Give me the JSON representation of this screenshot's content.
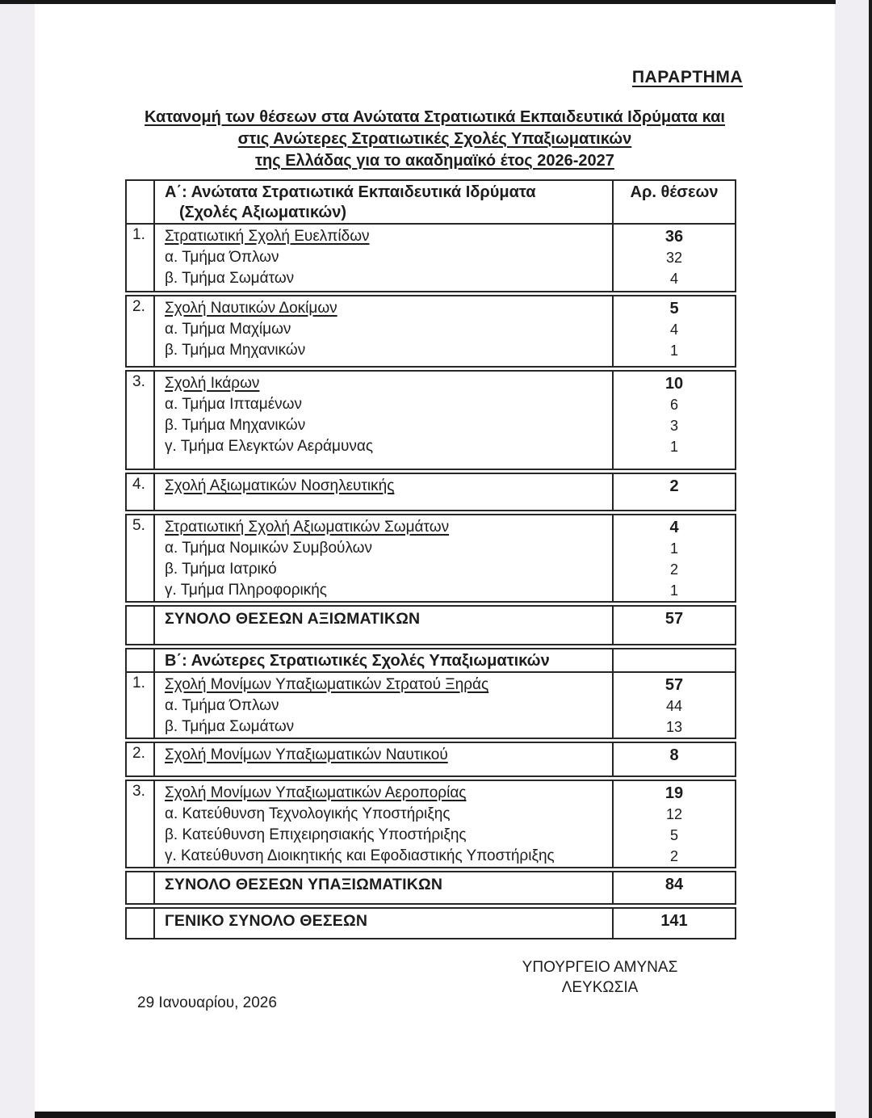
{
  "appendix_label": "ΠΑΡΑΡΤΗΜΑ",
  "title_lines": [
    "Κατανομή των θέσεων στα Ανώτατα Στρατιωτικά Εκπαιδευτικά Ιδρύματα και",
    "στις Ανώτερες Στρατιωτικές Σχολές Υπαξιωματικών",
    "της Ελλάδας για το ακαδημαϊκό έτος 2026-2027"
  ],
  "colors": {
    "page": "#ffffff",
    "margin_band": "#f1eef3",
    "border": "#262626",
    "ink": "#1c1c1c"
  },
  "table": {
    "section_a": {
      "header_line1": "Α΄: Ανώτατα Στρατιωτικά Εκπαιδευτικά Ιδρύματα",
      "header_line2": "(Σχολές Αξιωματικών)",
      "col_header": "Αρ. θέσεων",
      "rows": [
        {
          "num": "1.",
          "school": "Στρατιωτική Σχολή Ευελπίδων",
          "total": "36",
          "subs": [
            {
              "label": "α. Τμήμα Όπλων",
              "value": "32"
            },
            {
              "label": "β. Τμήμα Σωμάτων",
              "value": "4"
            }
          ]
        },
        {
          "num": "2.",
          "school": "Σχολή Ναυτικών Δοκίμων",
          "total": "5",
          "subs": [
            {
              "label": "α. Τμήμα Μαχίμων",
              "value": "4"
            },
            {
              "label": "β. Τμήμα Μηχανικών",
              "value": "1"
            }
          ]
        },
        {
          "num": "3.",
          "school": "Σχολή Ικάρων",
          "total": "10",
          "subs": [
            {
              "label": "α. Τμήμα Ιπταμένων",
              "value": "6"
            },
            {
              "label": "β. Τμήμα Μηχανικών",
              "value": "3"
            },
            {
              "label": "γ. Τμήμα Ελεγκτών Αεράμυνας",
              "value": "1"
            }
          ]
        },
        {
          "num": "4.",
          "school": "Σχολή Αξιωματικών Νοσηλευτικής",
          "total": "2",
          "subs": []
        },
        {
          "num": "5.",
          "school": "Στρατιωτική Σχολή Αξιωματικών Σωμάτων",
          "total": "4",
          "subs": [
            {
              "label": "α. Τμήμα Νομικών Συμβούλων",
              "value": "1"
            },
            {
              "label": "β. Τμήμα Ιατρικό",
              "value": "2"
            },
            {
              "label": "γ. Τμήμα Πληροφορικής",
              "value": "1"
            }
          ]
        }
      ],
      "total_label": "ΣΥΝΟΛΟ ΘΕΣΕΩΝ ΑΞΙΩΜΑΤΙΚΩΝ",
      "total_value": "57"
    },
    "section_b": {
      "header": "Β΄: Ανώτερες Στρατιωτικές Σχολές Υπαξιωματικών",
      "rows": [
        {
          "num": "1.",
          "school": "Σχολή Μονίμων Υπαξιωματικών Στρατού Ξηράς",
          "total": "57",
          "subs": [
            {
              "label": "α. Τμήμα Όπλων",
              "value": "44"
            },
            {
              "label": "β. Τμήμα Σωμάτων",
              "value": "13"
            }
          ]
        },
        {
          "num": "2.",
          "school": "Σχολή Μονίμων Υπαξιωματικών Ναυτικού",
          "total": "8",
          "subs": []
        },
        {
          "num": "3.",
          "school": "Σχολή Μονίμων Υπαξιωματικών Αεροπορίας",
          "total": "19",
          "subs": [
            {
              "label": "α. Κατεύθυνση Τεχνολογικής Υποστήριξης",
              "value": "12"
            },
            {
              "label": "β. Κατεύθυνση Επιχειρησιακής Υποστήριξης",
              "value": "5"
            },
            {
              "label": "γ. Κατεύθυνση Διοικητικής και Εφοδιαστικής Υποστήριξης",
              "value": "2"
            }
          ]
        }
      ],
      "total_label": "ΣΥΝΟΛΟ ΘΕΣΕΩΝ ΥΠΑΞΙΩΜΑΤΙΚΩΝ",
      "total_value": "84"
    },
    "grand_total_label": "ΓΕΝΙΚΟ ΣΥΝΟΛΟ ΘΕΣΕΩΝ",
    "grand_total_value": "141"
  },
  "footer": {
    "ministry": "ΥΠΟΥΡΓΕΙΟ ΑΜΥΝΑΣ",
    "city": "ΛΕΥΚΩΣΙΑ",
    "date": "29 Ιανουαρίου, 2026"
  }
}
